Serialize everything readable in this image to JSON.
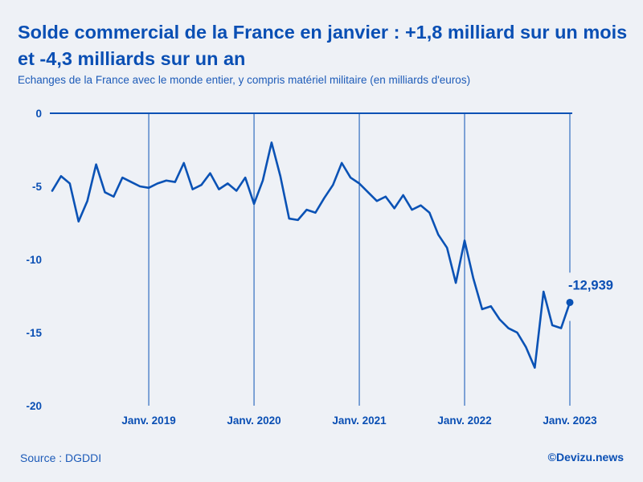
{
  "header": {
    "title": "Solde commercial de la France en janvier : +1,8 milliard sur un mois et -4,3 milliards sur un an",
    "subtitle": "Echanges de la France avec le monde entier, y compris matériel militaire (en milliards d'euros)"
  },
  "footer": {
    "source": "Source : DGDDI",
    "credit": "©Devizu.news"
  },
  "colors": {
    "background": "#eef1f6",
    "line": "#0a52b5",
    "text": "#0a4fb4"
  },
  "chart_data": {
    "type": "line",
    "title": "Solde commercial de la France en janvier : +1,8 milliard sur un mois et -4,3 milliards sur un an",
    "xlabel": "",
    "ylabel": "",
    "ylim": [
      -20,
      0
    ],
    "yticks": [
      0,
      -5,
      -10,
      -15,
      -20
    ],
    "ytick_labels": [
      "0",
      "-5",
      "-10",
      "-15",
      "-20"
    ],
    "x_start": "2018-02",
    "x_unit": "month index (0 = 2018-02)",
    "xlim": [
      0,
      59
    ],
    "xticks": [
      {
        "x": 11,
        "label": "Janv. 2019"
      },
      {
        "x": 23,
        "label": "Janv. 2020"
      },
      {
        "x": 35,
        "label": "Janv. 2021"
      },
      {
        "x": 47,
        "label": "Janv. 2022"
      },
      {
        "x": 59,
        "label": "Janv. 2023"
      }
    ],
    "grid": "vertical lines at January of each year",
    "series": [
      {
        "name": "Solde commercial",
        "values": [
          -5.3,
          -4.3,
          -4.8,
          -7.4,
          -6.0,
          -3.5,
          -5.4,
          -5.7,
          -4.4,
          -4.7,
          -5.0,
          -5.1,
          -4.8,
          -4.6,
          -4.7,
          -3.4,
          -5.2,
          -4.9,
          -4.1,
          -5.2,
          -4.8,
          -5.3,
          -4.4,
          -6.2,
          -4.6,
          -2.0,
          -4.3,
          -7.2,
          -7.3,
          -6.6,
          -6.8,
          -5.8,
          -4.9,
          -3.4,
          -4.4,
          -4.8,
          -5.4,
          -6.0,
          -5.7,
          -6.5,
          -5.6,
          -6.6,
          -6.3,
          -6.8,
          -8.3,
          -9.2,
          -11.6,
          -8.7,
          -11.3,
          -13.4,
          -13.2,
          -14.1,
          -14.7,
          -15.0,
          -16.0,
          -17.4,
          -12.2,
          -14.5,
          -14.7,
          -12.939
        ]
      }
    ],
    "highlight": {
      "x": 59,
      "value": -12.939,
      "label": "-12,939"
    }
  }
}
